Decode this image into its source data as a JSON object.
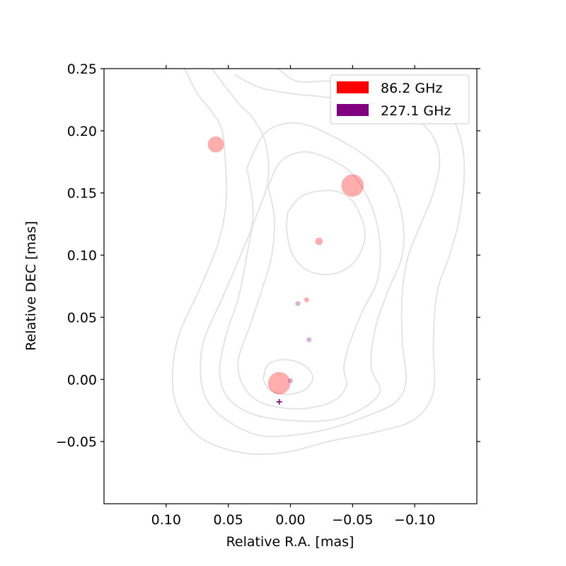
{
  "chart_data": {
    "type": "scatter",
    "title": "",
    "xlabel": "Relative R.A. [mas]",
    "ylabel": "Relative DEC [mas]",
    "xlim": [
      0.15,
      -0.15
    ],
    "ylim": [
      -0.1,
      0.25
    ],
    "x_ticks": [
      0.1,
      0.05,
      0.0,
      -0.05,
      -0.1
    ],
    "x_tick_labels": [
      "0.10",
      "0.05",
      "0.00",
      "−0.05",
      "−0.10"
    ],
    "y_ticks": [
      0.25,
      0.2,
      0.15,
      0.1,
      0.05,
      0.0,
      -0.05
    ],
    "y_tick_labels": [
      "0.25",
      "0.20",
      "0.15",
      "0.10",
      "0.05",
      "0.00",
      "−0.05"
    ],
    "grid": false,
    "legend_position": "top-right",
    "series": [
      {
        "name": "86.2 GHz",
        "color": "#ff0000",
        "marker_color": "#ffaaaa",
        "points": [
          {
            "x": 0.06,
            "y": 0.189,
            "size": 0.013
          },
          {
            "x": -0.05,
            "y": 0.156,
            "size": 0.018
          },
          {
            "x": -0.023,
            "y": 0.111,
            "size": 0.006
          },
          {
            "x": -0.013,
            "y": 0.064,
            "size": 0.004
          },
          {
            "x": 0.009,
            "y": -0.003,
            "size": 0.018
          }
        ]
      },
      {
        "name": "227.1 GHz",
        "color": "#800080",
        "marker_color": "#c990c9",
        "points": [
          {
            "x": -0.006,
            "y": 0.061,
            "size": 0.004
          },
          {
            "x": -0.015,
            "y": 0.032,
            "size": 0.004
          },
          {
            "x": 0.0,
            "y": -0.001,
            "size": 0.004
          }
        ]
      }
    ],
    "reference_marker": {
      "x": 0.009,
      "y": -0.018,
      "color": "#800080"
    },
    "contours": [
      [
        [
          0.085,
          0.25
        ],
        [
          0.075,
          0.23
        ],
        [
          0.063,
          0.215
        ],
        [
          0.055,
          0.2
        ],
        [
          0.052,
          0.17
        ],
        [
          0.052,
          0.14
        ],
        [
          0.058,
          0.11
        ],
        [
          0.072,
          0.075
        ],
        [
          0.09,
          0.035
        ],
        [
          0.095,
          0.0
        ],
        [
          0.09,
          -0.025
        ],
        [
          0.075,
          -0.045
        ],
        [
          0.055,
          -0.055
        ],
        [
          0.03,
          -0.06
        ],
        [
          0.0,
          -0.058
        ],
        [
          -0.03,
          -0.05
        ],
        [
          -0.07,
          -0.042
        ],
        [
          -0.1,
          -0.032
        ],
        [
          -0.115,
          -0.01
        ],
        [
          -0.115,
          0.03
        ],
        [
          -0.118,
          0.07
        ],
        [
          -0.128,
          0.1
        ],
        [
          -0.136,
          0.13
        ],
        [
          -0.14,
          0.17
        ],
        [
          -0.135,
          0.2
        ],
        [
          -0.12,
          0.225
        ],
        [
          -0.1,
          0.235
        ],
        [
          -0.065,
          0.24
        ],
        [
          -0.03,
          0.24
        ],
        [
          -0.005,
          0.24
        ],
        [
          0.01,
          0.25
        ]
      ],
      [
        [
          0.063,
          0.25
        ],
        [
          0.052,
          0.235
        ],
        [
          0.04,
          0.22
        ],
        [
          0.03,
          0.21
        ],
        [
          0.02,
          0.19
        ],
        [
          0.018,
          0.16
        ],
        [
          0.028,
          0.13
        ],
        [
          0.04,
          0.1
        ],
        [
          0.055,
          0.065
        ],
        [
          0.07,
          0.03
        ],
        [
          0.072,
          0.0
        ],
        [
          0.065,
          -0.02
        ],
        [
          0.048,
          -0.035
        ],
        [
          0.025,
          -0.045
        ],
        [
          0.0,
          -0.045
        ],
        [
          -0.03,
          -0.04
        ],
        [
          -0.06,
          -0.03
        ],
        [
          -0.085,
          -0.018
        ],
        [
          -0.093,
          0.0
        ],
        [
          -0.09,
          0.03
        ],
        [
          -0.09,
          0.07
        ],
        [
          -0.095,
          0.1
        ],
        [
          -0.105,
          0.125
        ],
        [
          -0.115,
          0.15
        ],
        [
          -0.12,
          0.175
        ],
        [
          -0.115,
          0.195
        ],
        [
          -0.1,
          0.21
        ],
        [
          -0.075,
          0.22
        ],
        [
          -0.045,
          0.225
        ],
        [
          -0.02,
          0.228
        ],
        [
          0.0,
          0.23
        ],
        [
          0.025,
          0.235
        ],
        [
          0.045,
          0.245
        ]
      ],
      [
        [
          0.035,
          0.17
        ],
        [
          0.023,
          0.195
        ],
        [
          0.008,
          0.205
        ],
        [
          -0.012,
          0.205
        ],
        [
          -0.035,
          0.195
        ],
        [
          -0.06,
          0.18
        ],
        [
          -0.08,
          0.16
        ],
        [
          -0.09,
          0.13
        ],
        [
          -0.09,
          0.1
        ],
        [
          -0.078,
          0.07
        ],
        [
          -0.068,
          0.04
        ],
        [
          -0.065,
          0.01
        ],
        [
          -0.072,
          -0.01
        ],
        [
          -0.055,
          -0.025
        ],
        [
          -0.03,
          -0.033
        ],
        [
          0.0,
          -0.033
        ],
        [
          0.03,
          -0.028
        ],
        [
          0.05,
          -0.015
        ],
        [
          0.057,
          0.005
        ],
        [
          0.052,
          0.035
        ],
        [
          0.042,
          0.065
        ],
        [
          0.035,
          0.1
        ],
        [
          0.03,
          0.135
        ],
        [
          0.035,
          0.17
        ]
      ],
      [
        [
          0.018,
          0.155
        ],
        [
          0.008,
          0.175
        ],
        [
          -0.01,
          0.183
        ],
        [
          -0.03,
          0.178
        ],
        [
          -0.05,
          0.165
        ],
        [
          -0.065,
          0.14
        ],
        [
          -0.072,
          0.11
        ],
        [
          -0.07,
          0.08
        ],
        [
          -0.058,
          0.055
        ],
        [
          -0.048,
          0.03
        ],
        [
          -0.043,
          0.01
        ],
        [
          -0.045,
          -0.005
        ],
        [
          -0.035,
          -0.017
        ],
        [
          -0.015,
          -0.023
        ],
        [
          0.005,
          -0.023
        ],
        [
          0.025,
          -0.018
        ],
        [
          0.038,
          -0.005
        ],
        [
          0.042,
          0.015
        ],
        [
          0.032,
          0.045
        ],
        [
          0.022,
          0.075
        ],
        [
          0.015,
          0.1
        ],
        [
          0.013,
          0.13
        ],
        [
          0.018,
          0.155
        ]
      ],
      [
        [
          0.002,
          0.135
        ],
        [
          -0.01,
          0.148
        ],
        [
          -0.03,
          0.152
        ],
        [
          -0.045,
          0.148
        ],
        [
          -0.055,
          0.135
        ],
        [
          -0.06,
          0.115
        ],
        [
          -0.052,
          0.095
        ],
        [
          -0.035,
          0.085
        ],
        [
          -0.015,
          0.087
        ],
        [
          -0.002,
          0.1
        ],
        [
          0.003,
          0.12
        ],
        [
          0.002,
          0.135
        ]
      ],
      [
        [
          0.022,
          0.0
        ],
        [
          0.018,
          0.012
        ],
        [
          0.005,
          0.016
        ],
        [
          -0.01,
          0.012
        ],
        [
          -0.018,
          0.002
        ],
        [
          -0.012,
          -0.008
        ],
        [
          0.002,
          -0.012
        ],
        [
          0.016,
          -0.009
        ],
        [
          0.022,
          0.0
        ]
      ]
    ]
  }
}
